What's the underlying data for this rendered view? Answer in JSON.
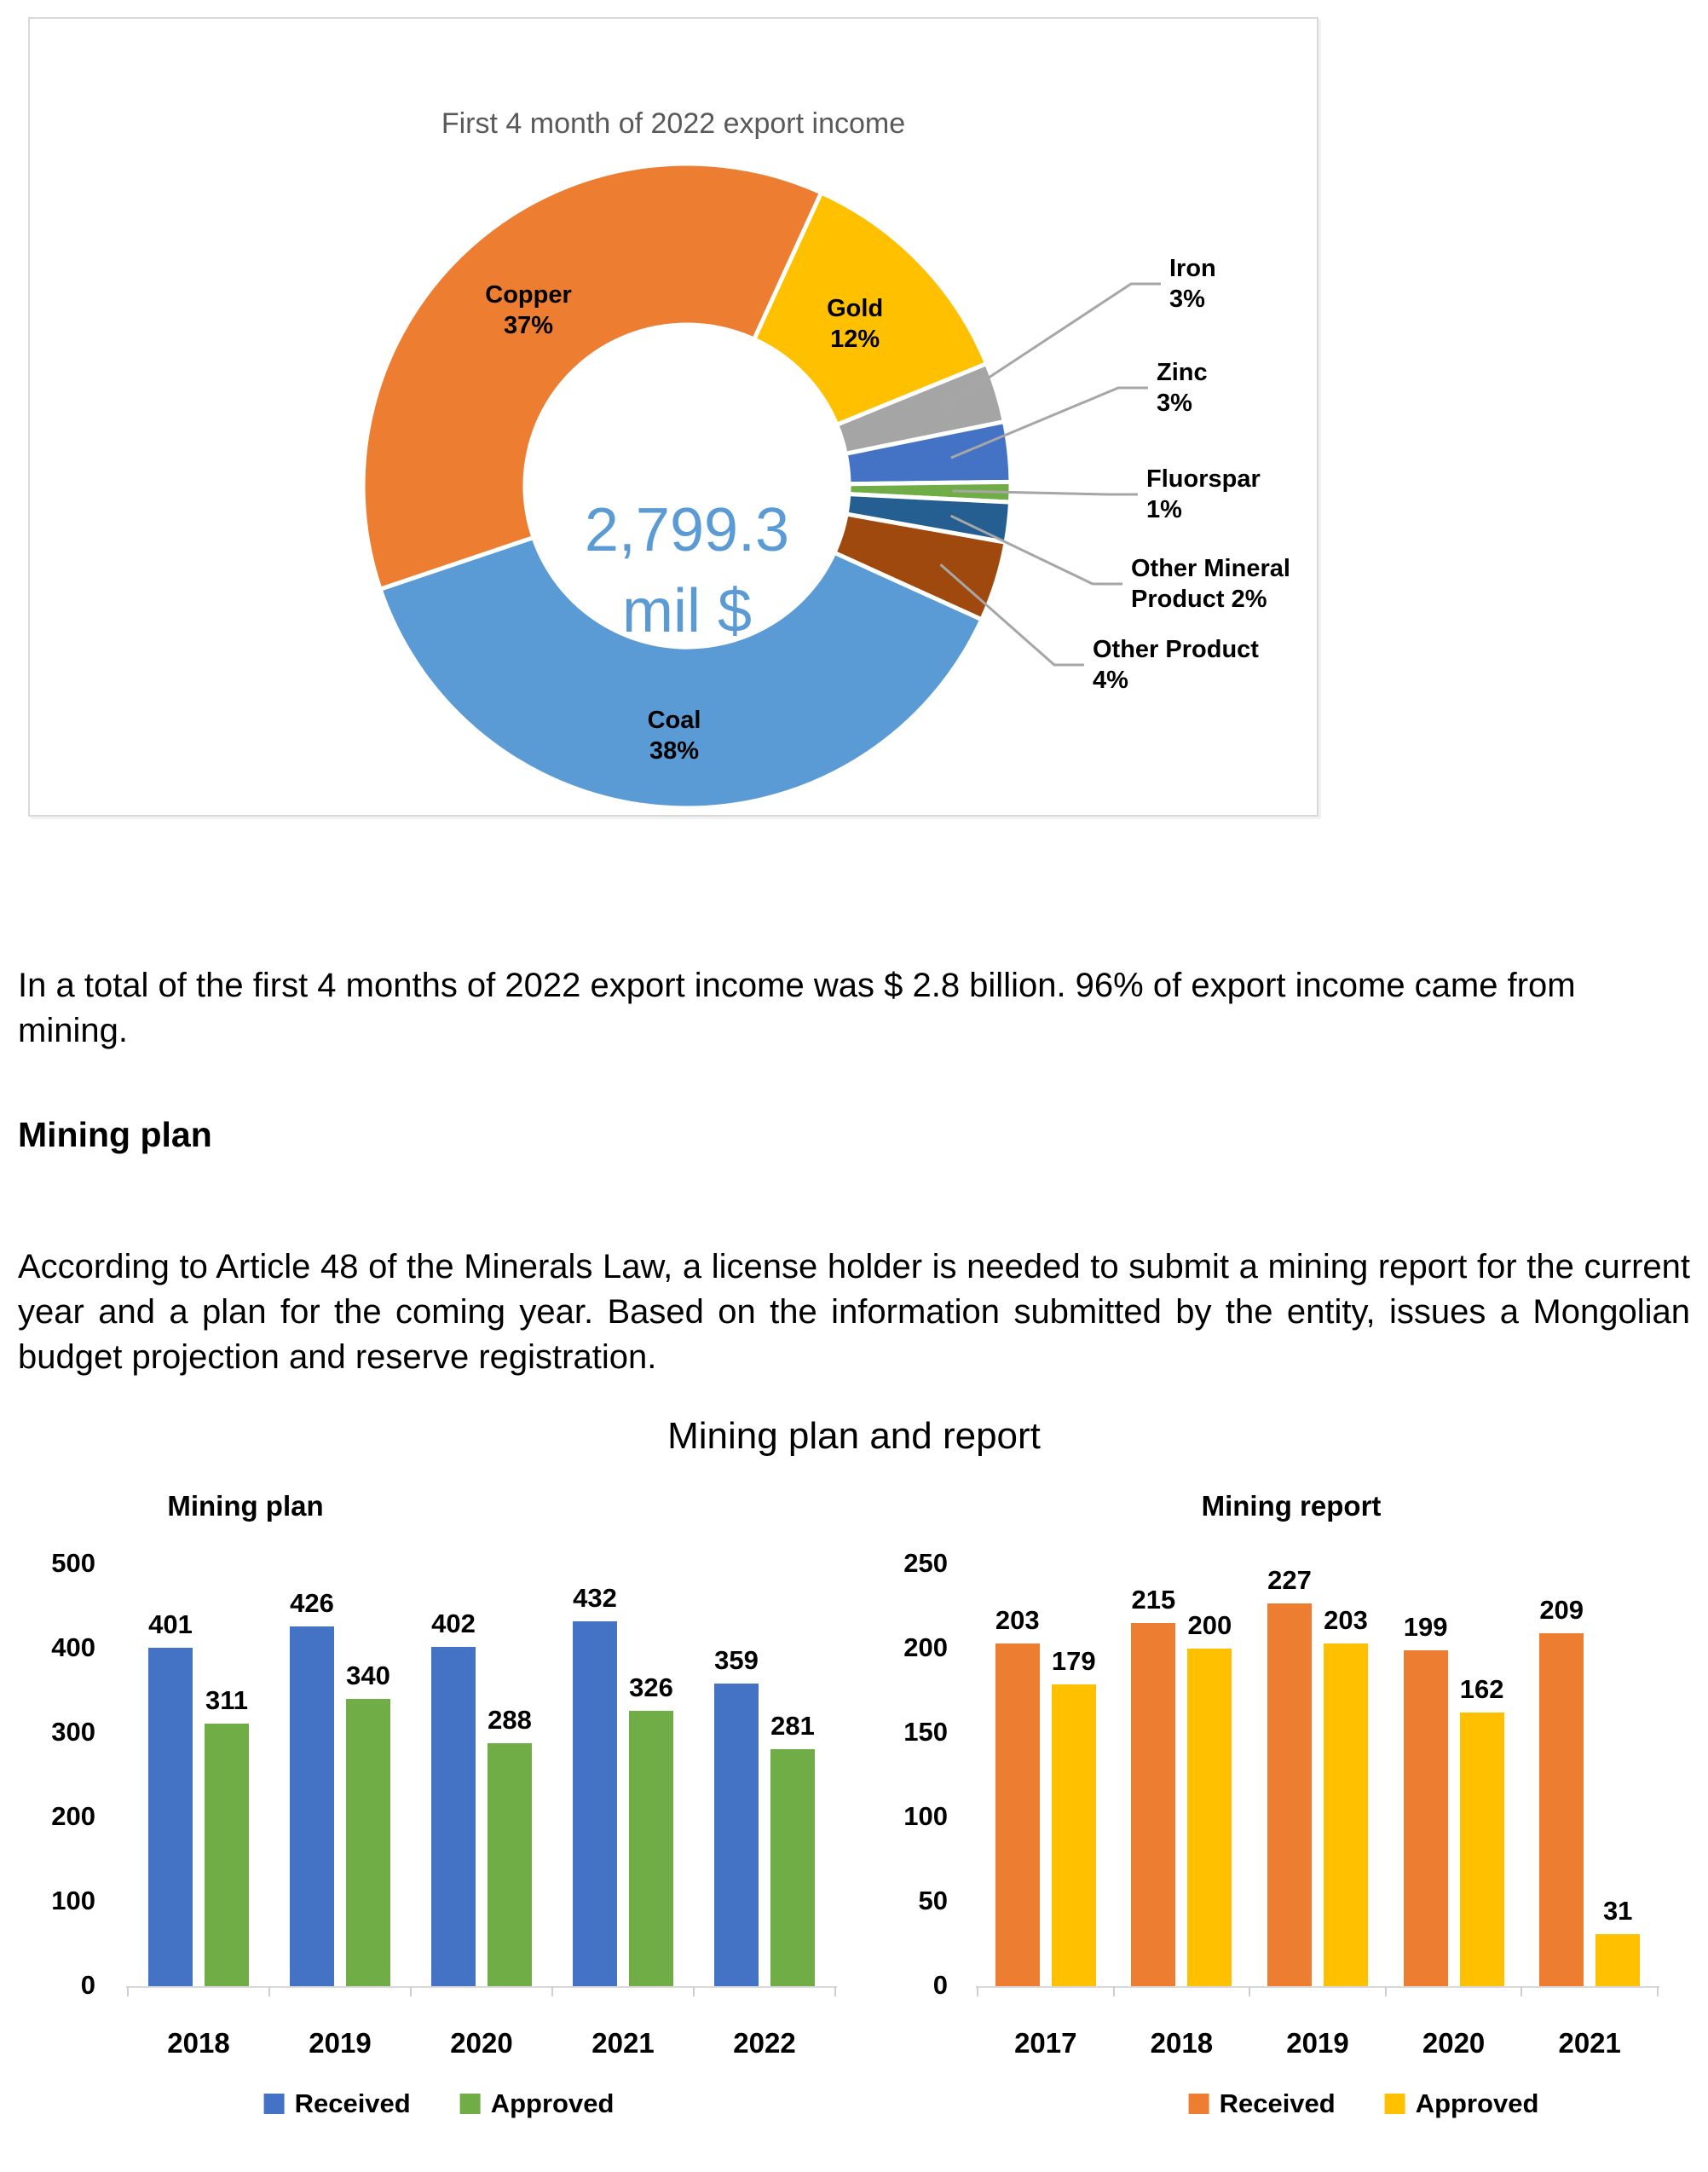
{
  "page": {
    "paragraph1": "In a total of the first 4 months of 2022 export income was $ 2.8 billion. 96% of export income came from mining.",
    "heading1": "Mining plan",
    "paragraph2": "According to Article 48 of the Minerals Law, a license holder is needed to submit a mining report for the current year and a plan for the coming year. Based on the information submitted by the entity, issues a Mongolian budget projection and reserve registration.",
    "section_title": "Mining plan and report"
  },
  "chart_data": [
    {
      "type": "pie",
      "variant": "donut",
      "title": "First 4 month of 2022 export income",
      "title_color": "#595959",
      "center_label": {
        "value": "2,799.3",
        "unit": "mil $",
        "color": "#5B9BD5"
      },
      "start_angle_deg": 251.3,
      "leader_color": "#A6A6A6",
      "legend_position": "none",
      "slices": [
        {
          "label": "Copper",
          "pct": 37,
          "color": "#ED7D31",
          "label_style": "inside",
          "label_lines": [
            "Copper",
            "37%"
          ]
        },
        {
          "label": "Gold",
          "pct": 12,
          "color": "#FFC000",
          "label_style": "inside",
          "label_lines": [
            "Gold",
            "12%"
          ]
        },
        {
          "label": "Iron",
          "pct": 3,
          "color": "#A5A5A5",
          "label_style": "leader",
          "label_lines": [
            "Iron",
            "3%"
          ]
        },
        {
          "label": "Zinc",
          "pct": 3,
          "color": "#4472C4",
          "label_style": "leader",
          "label_lines": [
            "Zinc",
            "3%"
          ]
        },
        {
          "label": "Fluorspar",
          "pct": 1,
          "color": "#70AD47",
          "label_style": "leader",
          "label_lines": [
            "Fluorspar",
            "1%"
          ]
        },
        {
          "label": "Other Mineral Product",
          "pct": 2,
          "color": "#255E91",
          "label_style": "leader",
          "label_lines": [
            "Other Mineral",
            "Product 2%"
          ]
        },
        {
          "label": "Other Product",
          "pct": 4,
          "color": "#A0490E",
          "label_style": "leader",
          "label_lines": [
            "Other Product",
            "4%"
          ]
        },
        {
          "label": "Coal",
          "pct": 38,
          "color": "#5B9BD5",
          "label_style": "inside",
          "label_lines": [
            "Coal",
            "38%"
          ]
        }
      ]
    },
    {
      "type": "bar",
      "title": "Mining plan",
      "categories": [
        "2018",
        "2019",
        "2020",
        "2021",
        "2022"
      ],
      "series": [
        {
          "name": "Received",
          "color": "#4472C4",
          "values": [
            401,
            426,
            402,
            432,
            359
          ]
        },
        {
          "name": "Approved",
          "color": "#70AD47",
          "values": [
            311,
            340,
            288,
            326,
            281
          ]
        }
      ],
      "ylim": [
        0,
        500
      ],
      "yticks": [
        0,
        100,
        200,
        300,
        400,
        500
      ],
      "grid": false,
      "legend_position": "bottom"
    },
    {
      "type": "bar",
      "title": "Mining report",
      "categories": [
        "2017",
        "2018",
        "2019",
        "2020",
        "2021"
      ],
      "series": [
        {
          "name": "Received",
          "color": "#ED7D31",
          "values": [
            203,
            215,
            227,
            199,
            209
          ]
        },
        {
          "name": "Approved",
          "color": "#FFC000",
          "values": [
            179,
            200,
            203,
            162,
            31
          ]
        }
      ],
      "ylim": [
        0,
        250
      ],
      "yticks": [
        0,
        50,
        100,
        150,
        200,
        250
      ],
      "grid": false,
      "legend_position": "bottom"
    }
  ]
}
